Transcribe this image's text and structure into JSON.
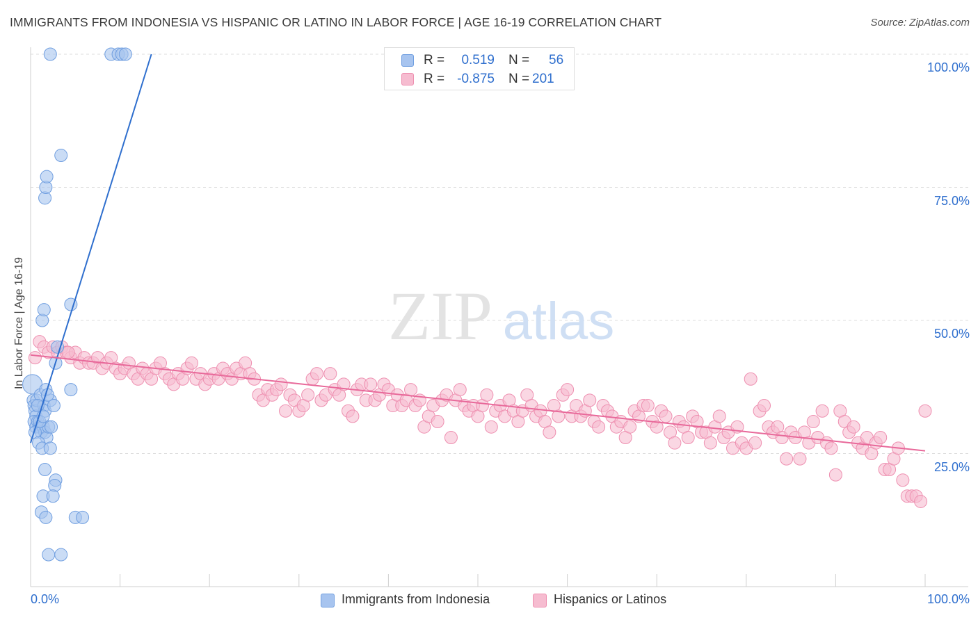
{
  "title": "IMMIGRANTS FROM INDONESIA VS HISPANIC OR LATINO IN LABOR FORCE | AGE 16-19 CORRELATION CHART",
  "source": "Source: ZipAtlas.com",
  "watermark": {
    "zip": "ZIP",
    "atlas": "atlas"
  },
  "stats": {
    "r_label": "R =",
    "n_label": "N =",
    "rows": [
      {
        "r": "0.519",
        "n": "56"
      },
      {
        "r": "-0.875",
        "n": "201"
      }
    ]
  },
  "chart_data": {
    "type": "scatter",
    "title": "IMMIGRANTS FROM INDONESIA VS HISPANIC OR LATINO IN LABOR FORCE | AGE 16-19 CORRELATION CHART",
    "xlabel": "",
    "ylabel": "In Labor Force | Age 16-19",
    "xlim": [
      0,
      100
    ],
    "ylim": [
      0,
      105
    ],
    "x_tick_labels": [
      "0.0%",
      "100.0%"
    ],
    "y_ticks": [
      25,
      50,
      75,
      100
    ],
    "y_tick_labels": [
      "25.0%",
      "50.0%",
      "75.0%",
      "100.0%"
    ],
    "grid": true,
    "legend_position": "bottom-center",
    "series": [
      {
        "name": "Immigrants from Indonesia",
        "color": "#a7c4ef",
        "edge": "#6f9ee0",
        "line_color": "#2f6fce",
        "trend": {
          "x0": 0,
          "y0": 27,
          "x1": 13.5,
          "y1": 100
        },
        "points": [
          [
            0.2,
            38
          ],
          [
            0.3,
            35
          ],
          [
            0.4,
            34
          ],
          [
            0.5,
            33
          ],
          [
            0.6,
            32
          ],
          [
            0.4,
            31
          ],
          [
            0.6,
            30
          ],
          [
            0.8,
            31
          ],
          [
            1.0,
            30
          ],
          [
            1.2,
            29
          ],
          [
            1.4,
            30
          ],
          [
            1.6,
            29
          ],
          [
            1.8,
            28
          ],
          [
            2.0,
            30
          ],
          [
            0.5,
            29
          ],
          [
            0.9,
            27
          ],
          [
            1.3,
            26
          ],
          [
            0.7,
            35
          ],
          [
            1.5,
            34
          ],
          [
            1.1,
            36
          ],
          [
            2.2,
            35
          ],
          [
            1.6,
            33
          ],
          [
            2.3,
            30
          ],
          [
            0.8,
            34
          ],
          [
            1.7,
            37
          ],
          [
            1.0,
            31
          ],
          [
            1.4,
            32
          ],
          [
            1.3,
            50
          ],
          [
            1.5,
            52
          ],
          [
            1.6,
            73
          ],
          [
            1.7,
            75
          ],
          [
            1.8,
            77
          ],
          [
            3.4,
            81
          ],
          [
            2.2,
            100
          ],
          [
            9.0,
            100
          ],
          [
            9.8,
            100
          ],
          [
            10.2,
            100
          ],
          [
            10.6,
            100
          ],
          [
            4.5,
            53
          ],
          [
            3.0,
            45
          ],
          [
            2.8,
            42
          ],
          [
            4.5,
            37
          ],
          [
            2.2,
            26
          ],
          [
            1.6,
            22
          ],
          [
            2.8,
            20
          ],
          [
            2.7,
            19
          ],
          [
            1.4,
            17
          ],
          [
            2.5,
            17
          ],
          [
            1.2,
            14
          ],
          [
            1.7,
            13
          ],
          [
            5.0,
            13
          ],
          [
            5.8,
            13
          ],
          [
            2.0,
            6
          ],
          [
            3.4,
            6
          ],
          [
            1.9,
            36
          ],
          [
            2.6,
            34
          ]
        ]
      },
      {
        "name": "Hispanics or Latinos",
        "color": "#f6bcd0",
        "edge": "#ee8fb0",
        "line_color": "#e8699a",
        "trend": {
          "x0": 0,
          "y0": 43.5,
          "x1": 100,
          "y1": 25.5
        },
        "points": [
          [
            0.5,
            43
          ],
          [
            1.0,
            46
          ],
          [
            1.5,
            45
          ],
          [
            2.0,
            44
          ],
          [
            2.5,
            45
          ],
          [
            3.0,
            44
          ],
          [
            3.5,
            45
          ],
          [
            4.0,
            44
          ],
          [
            4.5,
            43
          ],
          [
            5.0,
            44
          ],
          [
            5.5,
            42
          ],
          [
            6.0,
            43
          ],
          [
            6.5,
            42
          ],
          [
            7.0,
            42
          ],
          [
            7.5,
            43
          ],
          [
            8.0,
            41
          ],
          [
            8.5,
            42
          ],
          [
            9.0,
            43
          ],
          [
            9.5,
            41
          ],
          [
            10.0,
            40
          ],
          [
            10.5,
            41
          ],
          [
            11.0,
            42
          ],
          [
            11.5,
            40
          ],
          [
            12.0,
            39
          ],
          [
            12.5,
            41
          ],
          [
            13.0,
            40
          ],
          [
            13.5,
            39
          ],
          [
            14.0,
            41
          ],
          [
            14.5,
            42
          ],
          [
            15.0,
            40
          ],
          [
            15.5,
            39
          ],
          [
            16.0,
            38
          ],
          [
            16.5,
            40
          ],
          [
            17.0,
            39
          ],
          [
            17.5,
            41
          ],
          [
            18.0,
            42
          ],
          [
            18.5,
            39
          ],
          [
            19.0,
            40
          ],
          [
            19.5,
            38
          ],
          [
            20.0,
            39
          ],
          [
            20.5,
            40
          ],
          [
            21.0,
            39
          ],
          [
            21.5,
            41
          ],
          [
            22.0,
            40
          ],
          [
            22.5,
            39
          ],
          [
            23.0,
            41
          ],
          [
            23.5,
            40
          ],
          [
            24.0,
            42
          ],
          [
            24.5,
            40
          ],
          [
            25.0,
            39
          ],
          [
            25.5,
            36
          ],
          [
            26.0,
            35
          ],
          [
            26.5,
            37
          ],
          [
            27.0,
            36
          ],
          [
            27.5,
            37
          ],
          [
            28.0,
            38
          ],
          [
            28.5,
            33
          ],
          [
            29.0,
            36
          ],
          [
            29.5,
            35
          ],
          [
            30.0,
            33
          ],
          [
            30.5,
            34
          ],
          [
            31.0,
            36
          ],
          [
            31.5,
            39
          ],
          [
            32.0,
            40
          ],
          [
            32.5,
            35
          ],
          [
            33.0,
            36
          ],
          [
            33.5,
            40
          ],
          [
            34.0,
            37
          ],
          [
            34.5,
            36
          ],
          [
            35.0,
            38
          ],
          [
            35.5,
            33
          ],
          [
            36.0,
            32
          ],
          [
            36.5,
            37
          ],
          [
            37.0,
            38
          ],
          [
            37.5,
            35
          ],
          [
            38.0,
            38
          ],
          [
            38.5,
            35
          ],
          [
            39.0,
            36
          ],
          [
            39.5,
            38
          ],
          [
            40.0,
            37
          ],
          [
            40.5,
            34
          ],
          [
            41.0,
            36
          ],
          [
            41.5,
            34
          ],
          [
            42.0,
            35
          ],
          [
            42.5,
            37
          ],
          [
            43.0,
            34
          ],
          [
            43.5,
            35
          ],
          [
            44.0,
            30
          ],
          [
            44.5,
            32
          ],
          [
            45.0,
            34
          ],
          [
            45.5,
            31
          ],
          [
            46.0,
            35
          ],
          [
            46.5,
            36
          ],
          [
            47.0,
            28
          ],
          [
            47.5,
            35
          ],
          [
            48.0,
            37
          ],
          [
            48.5,
            34
          ],
          [
            49.0,
            33
          ],
          [
            49.5,
            34
          ],
          [
            50.0,
            32
          ],
          [
            50.5,
            34
          ],
          [
            51.0,
            36
          ],
          [
            51.5,
            30
          ],
          [
            52.0,
            33
          ],
          [
            52.5,
            34
          ],
          [
            53.0,
            32
          ],
          [
            53.5,
            35
          ],
          [
            54.0,
            33
          ],
          [
            54.5,
            31
          ],
          [
            55.0,
            33
          ],
          [
            55.5,
            36
          ],
          [
            56.0,
            34
          ],
          [
            56.5,
            32
          ],
          [
            57.0,
            33
          ],
          [
            57.5,
            31
          ],
          [
            58.0,
            29
          ],
          [
            58.5,
            34
          ],
          [
            59.0,
            32
          ],
          [
            59.5,
            36
          ],
          [
            60.0,
            37
          ],
          [
            60.5,
            32
          ],
          [
            61.0,
            34
          ],
          [
            61.5,
            32
          ],
          [
            62.0,
            33
          ],
          [
            62.5,
            35
          ],
          [
            63.0,
            31
          ],
          [
            63.5,
            30
          ],
          [
            64.0,
            34
          ],
          [
            64.5,
            33
          ],
          [
            65.0,
            32
          ],
          [
            65.5,
            30
          ],
          [
            66.0,
            31
          ],
          [
            66.5,
            28
          ],
          [
            67.0,
            30
          ],
          [
            67.5,
            33
          ],
          [
            68.0,
            32
          ],
          [
            68.5,
            34
          ],
          [
            69.0,
            34
          ],
          [
            69.5,
            31
          ],
          [
            70.0,
            30
          ],
          [
            70.5,
            33
          ],
          [
            71.0,
            32
          ],
          [
            71.5,
            29
          ],
          [
            72.0,
            27
          ],
          [
            72.5,
            31
          ],
          [
            73.0,
            30
          ],
          [
            73.5,
            28
          ],
          [
            74.0,
            32
          ],
          [
            74.5,
            31
          ],
          [
            75.0,
            29
          ],
          [
            75.5,
            29
          ],
          [
            76.0,
            27
          ],
          [
            76.5,
            30
          ],
          [
            77.0,
            32
          ],
          [
            77.5,
            28
          ],
          [
            78.0,
            29
          ],
          [
            78.5,
            26
          ],
          [
            79.0,
            30
          ],
          [
            79.5,
            27
          ],
          [
            80.0,
            26
          ],
          [
            80.5,
            39
          ],
          [
            81.0,
            27
          ],
          [
            81.5,
            33
          ],
          [
            82.0,
            34
          ],
          [
            82.5,
            30
          ],
          [
            83.0,
            29
          ],
          [
            83.5,
            30
          ],
          [
            84.0,
            28
          ],
          [
            84.5,
            24
          ],
          [
            85.0,
            29
          ],
          [
            85.5,
            28
          ],
          [
            86.0,
            24
          ],
          [
            86.5,
            29
          ],
          [
            87.0,
            27
          ],
          [
            87.5,
            31
          ],
          [
            88.0,
            28
          ],
          [
            88.5,
            33
          ],
          [
            89.0,
            27
          ],
          [
            89.5,
            26
          ],
          [
            90.0,
            21
          ],
          [
            90.5,
            33
          ],
          [
            91.0,
            31
          ],
          [
            91.5,
            29
          ],
          [
            92.0,
            30
          ],
          [
            92.5,
            27
          ],
          [
            93.0,
            26
          ],
          [
            93.5,
            28
          ],
          [
            94.0,
            25
          ],
          [
            94.5,
            27
          ],
          [
            95.0,
            28
          ],
          [
            95.5,
            22
          ],
          [
            96.0,
            22
          ],
          [
            96.5,
            24
          ],
          [
            97.0,
            26
          ],
          [
            97.5,
            20
          ],
          [
            98.0,
            17
          ],
          [
            98.5,
            17
          ],
          [
            99.0,
            17
          ],
          [
            99.5,
            16
          ],
          [
            100.0,
            33
          ],
          [
            4.2,
            44
          ]
        ]
      }
    ]
  }
}
